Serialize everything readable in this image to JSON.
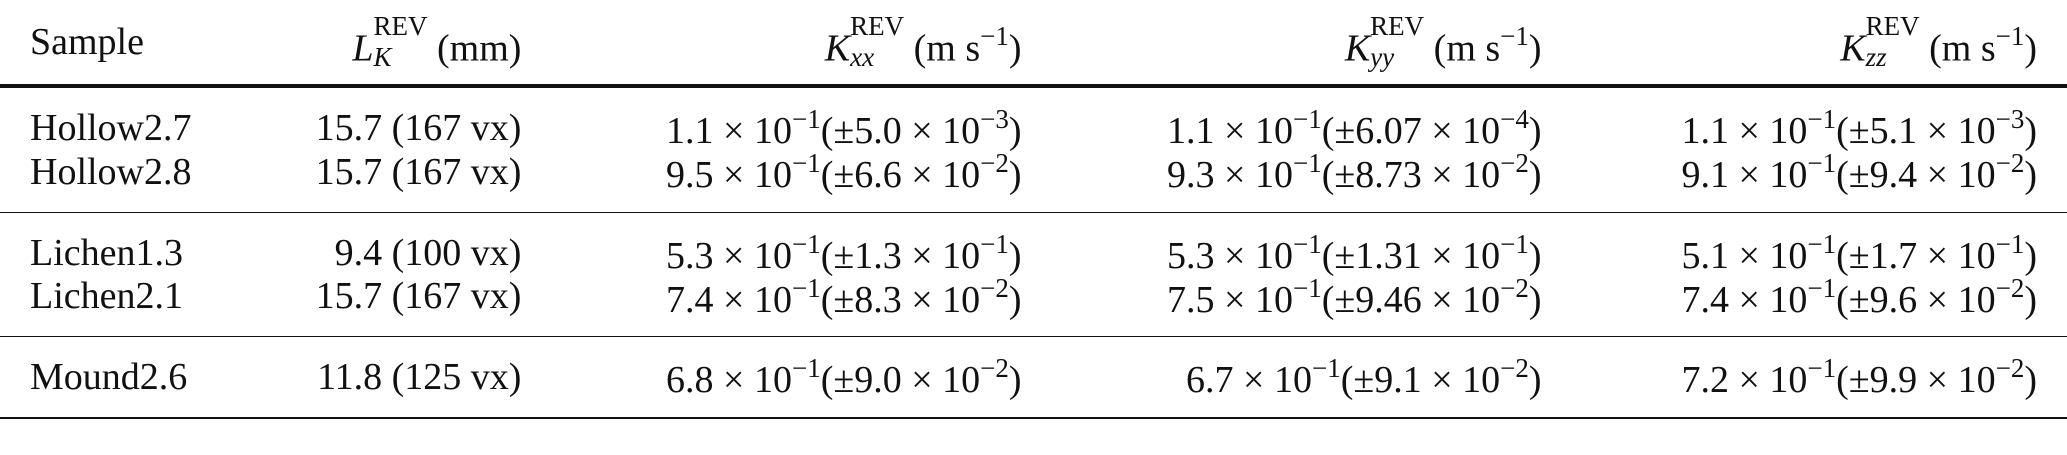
{
  "table": {
    "header": {
      "sample": "Sample",
      "col1": {
        "symbol": "L",
        "sup": "REV",
        "sub": "K",
        "unit": "(mm)"
      },
      "col2": {
        "symbol": "K",
        "sup": "REV",
        "sub": "xx",
        "unit_pre": "(m s",
        "unit_exp": "−1",
        "unit_post": ")"
      },
      "col3": {
        "symbol": "K",
        "sup": "REV",
        "sub": "yy",
        "unit_pre": "(m s",
        "unit_exp": "−1",
        "unit_post": ")"
      },
      "col4": {
        "symbol": "K",
        "sup": "REV",
        "sub": "zz",
        "unit_pre": "(m s",
        "unit_exp": "−1",
        "unit_post": ")"
      }
    },
    "rows": [
      {
        "sample": "Hollow2.7",
        "lk": "15.7 (167 vx)",
        "kxx": {
          "m": "1.1",
          "e": "−1",
          "em": "5.0",
          "ee": "−3"
        },
        "kyy": {
          "m": "1.1",
          "e": "−1",
          "em": "6.07",
          "ee": "−4"
        },
        "kzz": {
          "m": "1.1",
          "e": "−1",
          "em": "5.1",
          "ee": "−3"
        }
      },
      {
        "sample": "Hollow2.8",
        "lk": "15.7 (167 vx)",
        "kxx": {
          "m": "9.5",
          "e": "−1",
          "em": "6.6",
          "ee": "−2"
        },
        "kyy": {
          "m": "9.3",
          "e": "−1",
          "em": "8.73",
          "ee": "−2"
        },
        "kzz": {
          "m": "9.1",
          "e": "−1",
          "em": "9.4",
          "ee": "−2"
        }
      },
      {
        "sample": "Lichen1.3",
        "lk": "9.4 (100 vx)",
        "kxx": {
          "m": "5.3",
          "e": "−1",
          "em": "1.3",
          "ee": "−1"
        },
        "kyy": {
          "m": "5.3",
          "e": "−1",
          "em": "1.31",
          "ee": "−1"
        },
        "kzz": {
          "m": "5.1",
          "e": "−1",
          "em": "1.7",
          "ee": "−1"
        }
      },
      {
        "sample": "Lichen2.1",
        "lk": "15.7 (167 vx)",
        "kxx": {
          "m": "7.4",
          "e": "−1",
          "em": "8.3",
          "ee": "−2"
        },
        "kyy": {
          "m": "7.5",
          "e": "−1",
          "em": "9.46",
          "ee": "−2"
        },
        "kzz": {
          "m": "7.4",
          "e": "−1",
          "em": "9.6",
          "ee": "−2"
        }
      },
      {
        "sample": "Mound2.6",
        "lk": "11.8 (125 vx)",
        "kxx": {
          "m": "6.8",
          "e": "−1",
          "em": "9.0",
          "ee": "−2"
        },
        "kyy": {
          "m": "6.7",
          "e": "−1",
          "em": "9.1",
          "ee": "−2"
        },
        "kzz": {
          "m": "7.2",
          "e": "−1",
          "em": "9.9",
          "ee": "−2"
        }
      }
    ]
  }
}
